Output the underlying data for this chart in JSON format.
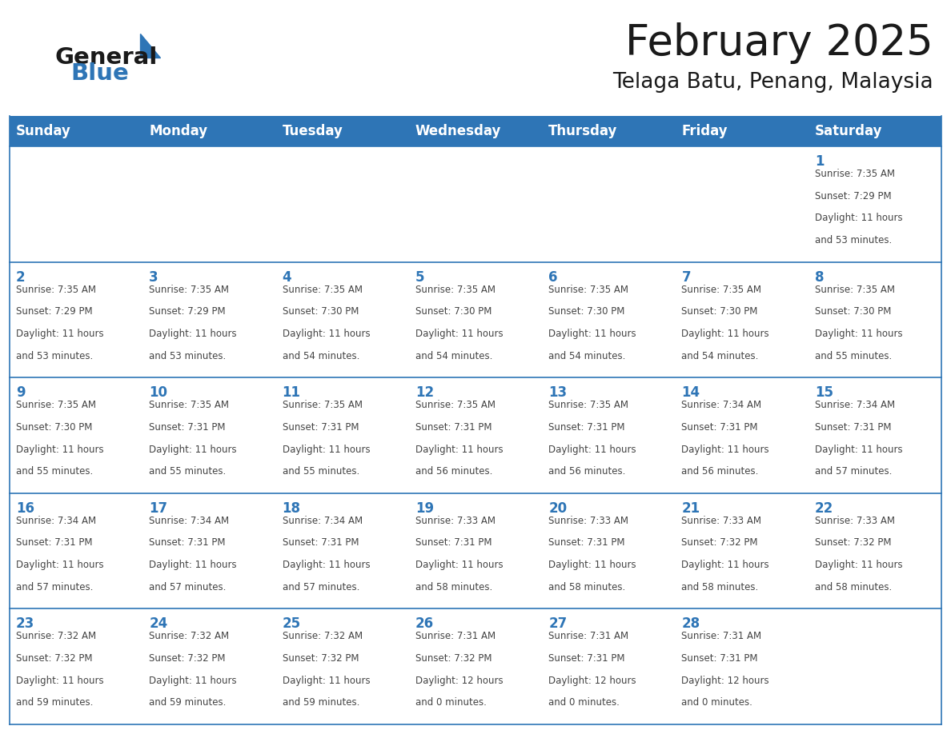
{
  "title": "February 2025",
  "subtitle": "Telaga Batu, Penang, Malaysia",
  "header_bg": "#2E75B6",
  "header_text_color": "#FFFFFF",
  "border_color": "#2E75B6",
  "day_number_color": "#2E75B6",
  "cell_text_color": "#444444",
  "cell_bg": "#FFFFFF",
  "days_of_week": [
    "Sunday",
    "Monday",
    "Tuesday",
    "Wednesday",
    "Thursday",
    "Friday",
    "Saturday"
  ],
  "weeks": [
    [
      {
        "day": "",
        "sunrise": "",
        "sunset": "",
        "daylight_line1": "",
        "daylight_line2": ""
      },
      {
        "day": "",
        "sunrise": "",
        "sunset": "",
        "daylight_line1": "",
        "daylight_line2": ""
      },
      {
        "day": "",
        "sunrise": "",
        "sunset": "",
        "daylight_line1": "",
        "daylight_line2": ""
      },
      {
        "day": "",
        "sunrise": "",
        "sunset": "",
        "daylight_line1": "",
        "daylight_line2": ""
      },
      {
        "day": "",
        "sunrise": "",
        "sunset": "",
        "daylight_line1": "",
        "daylight_line2": ""
      },
      {
        "day": "",
        "sunrise": "",
        "sunset": "",
        "daylight_line1": "",
        "daylight_line2": ""
      },
      {
        "day": "1",
        "sunrise": "Sunrise: 7:35 AM",
        "sunset": "Sunset: 7:29 PM",
        "daylight_line1": "Daylight: 11 hours",
        "daylight_line2": "and 53 minutes."
      }
    ],
    [
      {
        "day": "2",
        "sunrise": "Sunrise: 7:35 AM",
        "sunset": "Sunset: 7:29 PM",
        "daylight_line1": "Daylight: 11 hours",
        "daylight_line2": "and 53 minutes."
      },
      {
        "day": "3",
        "sunrise": "Sunrise: 7:35 AM",
        "sunset": "Sunset: 7:29 PM",
        "daylight_line1": "Daylight: 11 hours",
        "daylight_line2": "and 53 minutes."
      },
      {
        "day": "4",
        "sunrise": "Sunrise: 7:35 AM",
        "sunset": "Sunset: 7:30 PM",
        "daylight_line1": "Daylight: 11 hours",
        "daylight_line2": "and 54 minutes."
      },
      {
        "day": "5",
        "sunrise": "Sunrise: 7:35 AM",
        "sunset": "Sunset: 7:30 PM",
        "daylight_line1": "Daylight: 11 hours",
        "daylight_line2": "and 54 minutes."
      },
      {
        "day": "6",
        "sunrise": "Sunrise: 7:35 AM",
        "sunset": "Sunset: 7:30 PM",
        "daylight_line1": "Daylight: 11 hours",
        "daylight_line2": "and 54 minutes."
      },
      {
        "day": "7",
        "sunrise": "Sunrise: 7:35 AM",
        "sunset": "Sunset: 7:30 PM",
        "daylight_line1": "Daylight: 11 hours",
        "daylight_line2": "and 54 minutes."
      },
      {
        "day": "8",
        "sunrise": "Sunrise: 7:35 AM",
        "sunset": "Sunset: 7:30 PM",
        "daylight_line1": "Daylight: 11 hours",
        "daylight_line2": "and 55 minutes."
      }
    ],
    [
      {
        "day": "9",
        "sunrise": "Sunrise: 7:35 AM",
        "sunset": "Sunset: 7:30 PM",
        "daylight_line1": "Daylight: 11 hours",
        "daylight_line2": "and 55 minutes."
      },
      {
        "day": "10",
        "sunrise": "Sunrise: 7:35 AM",
        "sunset": "Sunset: 7:31 PM",
        "daylight_line1": "Daylight: 11 hours",
        "daylight_line2": "and 55 minutes."
      },
      {
        "day": "11",
        "sunrise": "Sunrise: 7:35 AM",
        "sunset": "Sunset: 7:31 PM",
        "daylight_line1": "Daylight: 11 hours",
        "daylight_line2": "and 55 minutes."
      },
      {
        "day": "12",
        "sunrise": "Sunrise: 7:35 AM",
        "sunset": "Sunset: 7:31 PM",
        "daylight_line1": "Daylight: 11 hours",
        "daylight_line2": "and 56 minutes."
      },
      {
        "day": "13",
        "sunrise": "Sunrise: 7:35 AM",
        "sunset": "Sunset: 7:31 PM",
        "daylight_line1": "Daylight: 11 hours",
        "daylight_line2": "and 56 minutes."
      },
      {
        "day": "14",
        "sunrise": "Sunrise: 7:34 AM",
        "sunset": "Sunset: 7:31 PM",
        "daylight_line1": "Daylight: 11 hours",
        "daylight_line2": "and 56 minutes."
      },
      {
        "day": "15",
        "sunrise": "Sunrise: 7:34 AM",
        "sunset": "Sunset: 7:31 PM",
        "daylight_line1": "Daylight: 11 hours",
        "daylight_line2": "and 57 minutes."
      }
    ],
    [
      {
        "day": "16",
        "sunrise": "Sunrise: 7:34 AM",
        "sunset": "Sunset: 7:31 PM",
        "daylight_line1": "Daylight: 11 hours",
        "daylight_line2": "and 57 minutes."
      },
      {
        "day": "17",
        "sunrise": "Sunrise: 7:34 AM",
        "sunset": "Sunset: 7:31 PM",
        "daylight_line1": "Daylight: 11 hours",
        "daylight_line2": "and 57 minutes."
      },
      {
        "day": "18",
        "sunrise": "Sunrise: 7:34 AM",
        "sunset": "Sunset: 7:31 PM",
        "daylight_line1": "Daylight: 11 hours",
        "daylight_line2": "and 57 minutes."
      },
      {
        "day": "19",
        "sunrise": "Sunrise: 7:33 AM",
        "sunset": "Sunset: 7:31 PM",
        "daylight_line1": "Daylight: 11 hours",
        "daylight_line2": "and 58 minutes."
      },
      {
        "day": "20",
        "sunrise": "Sunrise: 7:33 AM",
        "sunset": "Sunset: 7:31 PM",
        "daylight_line1": "Daylight: 11 hours",
        "daylight_line2": "and 58 minutes."
      },
      {
        "day": "21",
        "sunrise": "Sunrise: 7:33 AM",
        "sunset": "Sunset: 7:32 PM",
        "daylight_line1": "Daylight: 11 hours",
        "daylight_line2": "and 58 minutes."
      },
      {
        "day": "22",
        "sunrise": "Sunrise: 7:33 AM",
        "sunset": "Sunset: 7:32 PM",
        "daylight_line1": "Daylight: 11 hours",
        "daylight_line2": "and 58 minutes."
      }
    ],
    [
      {
        "day": "23",
        "sunrise": "Sunrise: 7:32 AM",
        "sunset": "Sunset: 7:32 PM",
        "daylight_line1": "Daylight: 11 hours",
        "daylight_line2": "and 59 minutes."
      },
      {
        "day": "24",
        "sunrise": "Sunrise: 7:32 AM",
        "sunset": "Sunset: 7:32 PM",
        "daylight_line1": "Daylight: 11 hours",
        "daylight_line2": "and 59 minutes."
      },
      {
        "day": "25",
        "sunrise": "Sunrise: 7:32 AM",
        "sunset": "Sunset: 7:32 PM",
        "daylight_line1": "Daylight: 11 hours",
        "daylight_line2": "and 59 minutes."
      },
      {
        "day": "26",
        "sunrise": "Sunrise: 7:31 AM",
        "sunset": "Sunset: 7:32 PM",
        "daylight_line1": "Daylight: 12 hours",
        "daylight_line2": "and 0 minutes."
      },
      {
        "day": "27",
        "sunrise": "Sunrise: 7:31 AM",
        "sunset": "Sunset: 7:31 PM",
        "daylight_line1": "Daylight: 12 hours",
        "daylight_line2": "and 0 minutes."
      },
      {
        "day": "28",
        "sunrise": "Sunrise: 7:31 AM",
        "sunset": "Sunset: 7:31 PM",
        "daylight_line1": "Daylight: 12 hours",
        "daylight_line2": "and 0 minutes."
      },
      {
        "day": "",
        "sunrise": "",
        "sunset": "",
        "daylight_line1": "",
        "daylight_line2": ""
      }
    ]
  ]
}
